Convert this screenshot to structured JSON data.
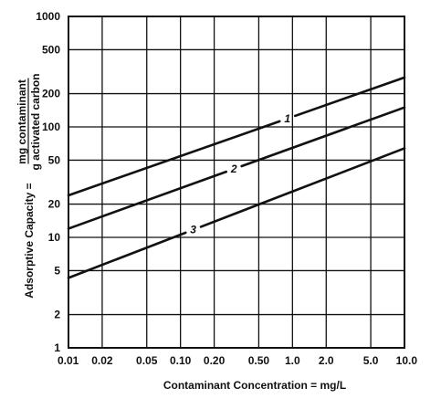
{
  "chart_data": {
    "type": "line",
    "title": "",
    "x_scale": "log",
    "y_scale": "log",
    "xlim": [
      0.01,
      10.0
    ],
    "ylim": [
      1,
      1000
    ],
    "grid": true,
    "xlabel": "Contaminant Concentration = mg/L",
    "ylabel": {
      "prefix": "Adsorptive Capacity =",
      "numerator": "mg contaminant",
      "denominator": "g activated carbon"
    },
    "x_ticks": [
      {
        "value": 0.01,
        "label": "0.01"
      },
      {
        "value": 0.02,
        "label": "0.02"
      },
      {
        "value": 0.05,
        "label": "0.05"
      },
      {
        "value": 0.1,
        "label": "0.10"
      },
      {
        "value": 0.2,
        "label": "0.20"
      },
      {
        "value": 0.5,
        "label": "0.50"
      },
      {
        "value": 1.0,
        "label": "1.0"
      },
      {
        "value": 2.0,
        "label": "2.0"
      },
      {
        "value": 5.0,
        "label": "5.0"
      },
      {
        "value": 10.0,
        "label": "10.0"
      }
    ],
    "y_ticks": [
      {
        "value": 1,
        "label": "1"
      },
      {
        "value": 2,
        "label": "2"
      },
      {
        "value": 5,
        "label": "5"
      },
      {
        "value": 10,
        "label": "10"
      },
      {
        "value": 20,
        "label": "20"
      },
      {
        "value": 50,
        "label": "50"
      },
      {
        "value": 100,
        "label": "100"
      },
      {
        "value": 200,
        "label": "200"
      },
      {
        "value": 500,
        "label": "500"
      },
      {
        "value": 1000,
        "label": "1000"
      }
    ],
    "series": [
      {
        "name": "1",
        "x": [
          0.01,
          10.0
        ],
        "y": [
          24,
          280
        ],
        "label_at": 0.9
      },
      {
        "name": "2",
        "x": [
          0.01,
          10.0
        ],
        "y": [
          12,
          150
        ],
        "label_at": 0.3
      },
      {
        "name": "3",
        "x": [
          0.01,
          10.0
        ],
        "y": [
          4.3,
          64
        ],
        "label_at": 0.13
      }
    ]
  }
}
